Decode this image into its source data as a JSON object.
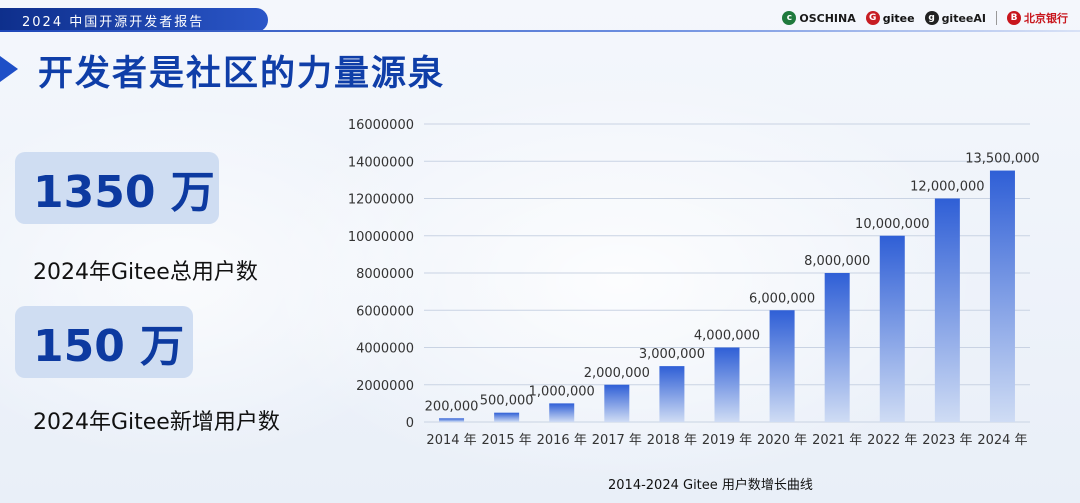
{
  "header": {
    "tag": "2024 中国开源开发者报告",
    "logos": [
      {
        "name": "OSCHINA",
        "icon": "c"
      },
      {
        "name": "gitee",
        "icon": "G"
      },
      {
        "name": "giteeAI",
        "icon": "g"
      },
      {
        "name": "北京银行",
        "icon": "B"
      }
    ]
  },
  "title": "开发者是社区的力量源泉",
  "stats": {
    "total_value": "1350 万",
    "total_label": "2024年Gitee总用户数",
    "new_value": "150 万",
    "new_label": "2024年Gitee新增用户数"
  },
  "colors": {
    "brand": "#0f3ea8",
    "bar_top": "#2f5fd6",
    "bar_bottom": "#cfdcf4"
  },
  "chart_data": {
    "type": "bar",
    "title": "2014-2024  Gitee  用户数增长曲线",
    "categories": [
      "2014 年",
      "2015 年",
      "2016 年",
      "2017 年",
      "2018 年",
      "2019 年",
      "2020 年",
      "2021 年",
      "2022 年",
      "2023 年",
      "2024 年"
    ],
    "values": [
      200000,
      500000,
      1000000,
      2000000,
      3000000,
      4000000,
      6000000,
      8000000,
      10000000,
      12000000,
      13500000
    ],
    "data_labels": [
      "200,000",
      "500,000",
      "1,000,000",
      "2,000,000",
      "3,000,000",
      "4,000,000",
      "6,000,000",
      "8,000,000",
      "10,000,000",
      "12,000,000",
      "13,500,000"
    ],
    "ylim": [
      0,
      16000000
    ],
    "yticks": [
      0,
      2000000,
      4000000,
      6000000,
      8000000,
      10000000,
      12000000,
      14000000,
      16000000
    ],
    "ytick_labels": [
      "0",
      "2000000",
      "4000000",
      "6000000",
      "8000000",
      "10000000",
      "12000000",
      "14000000",
      "16000000"
    ],
    "grid": true,
    "legend": "none"
  }
}
